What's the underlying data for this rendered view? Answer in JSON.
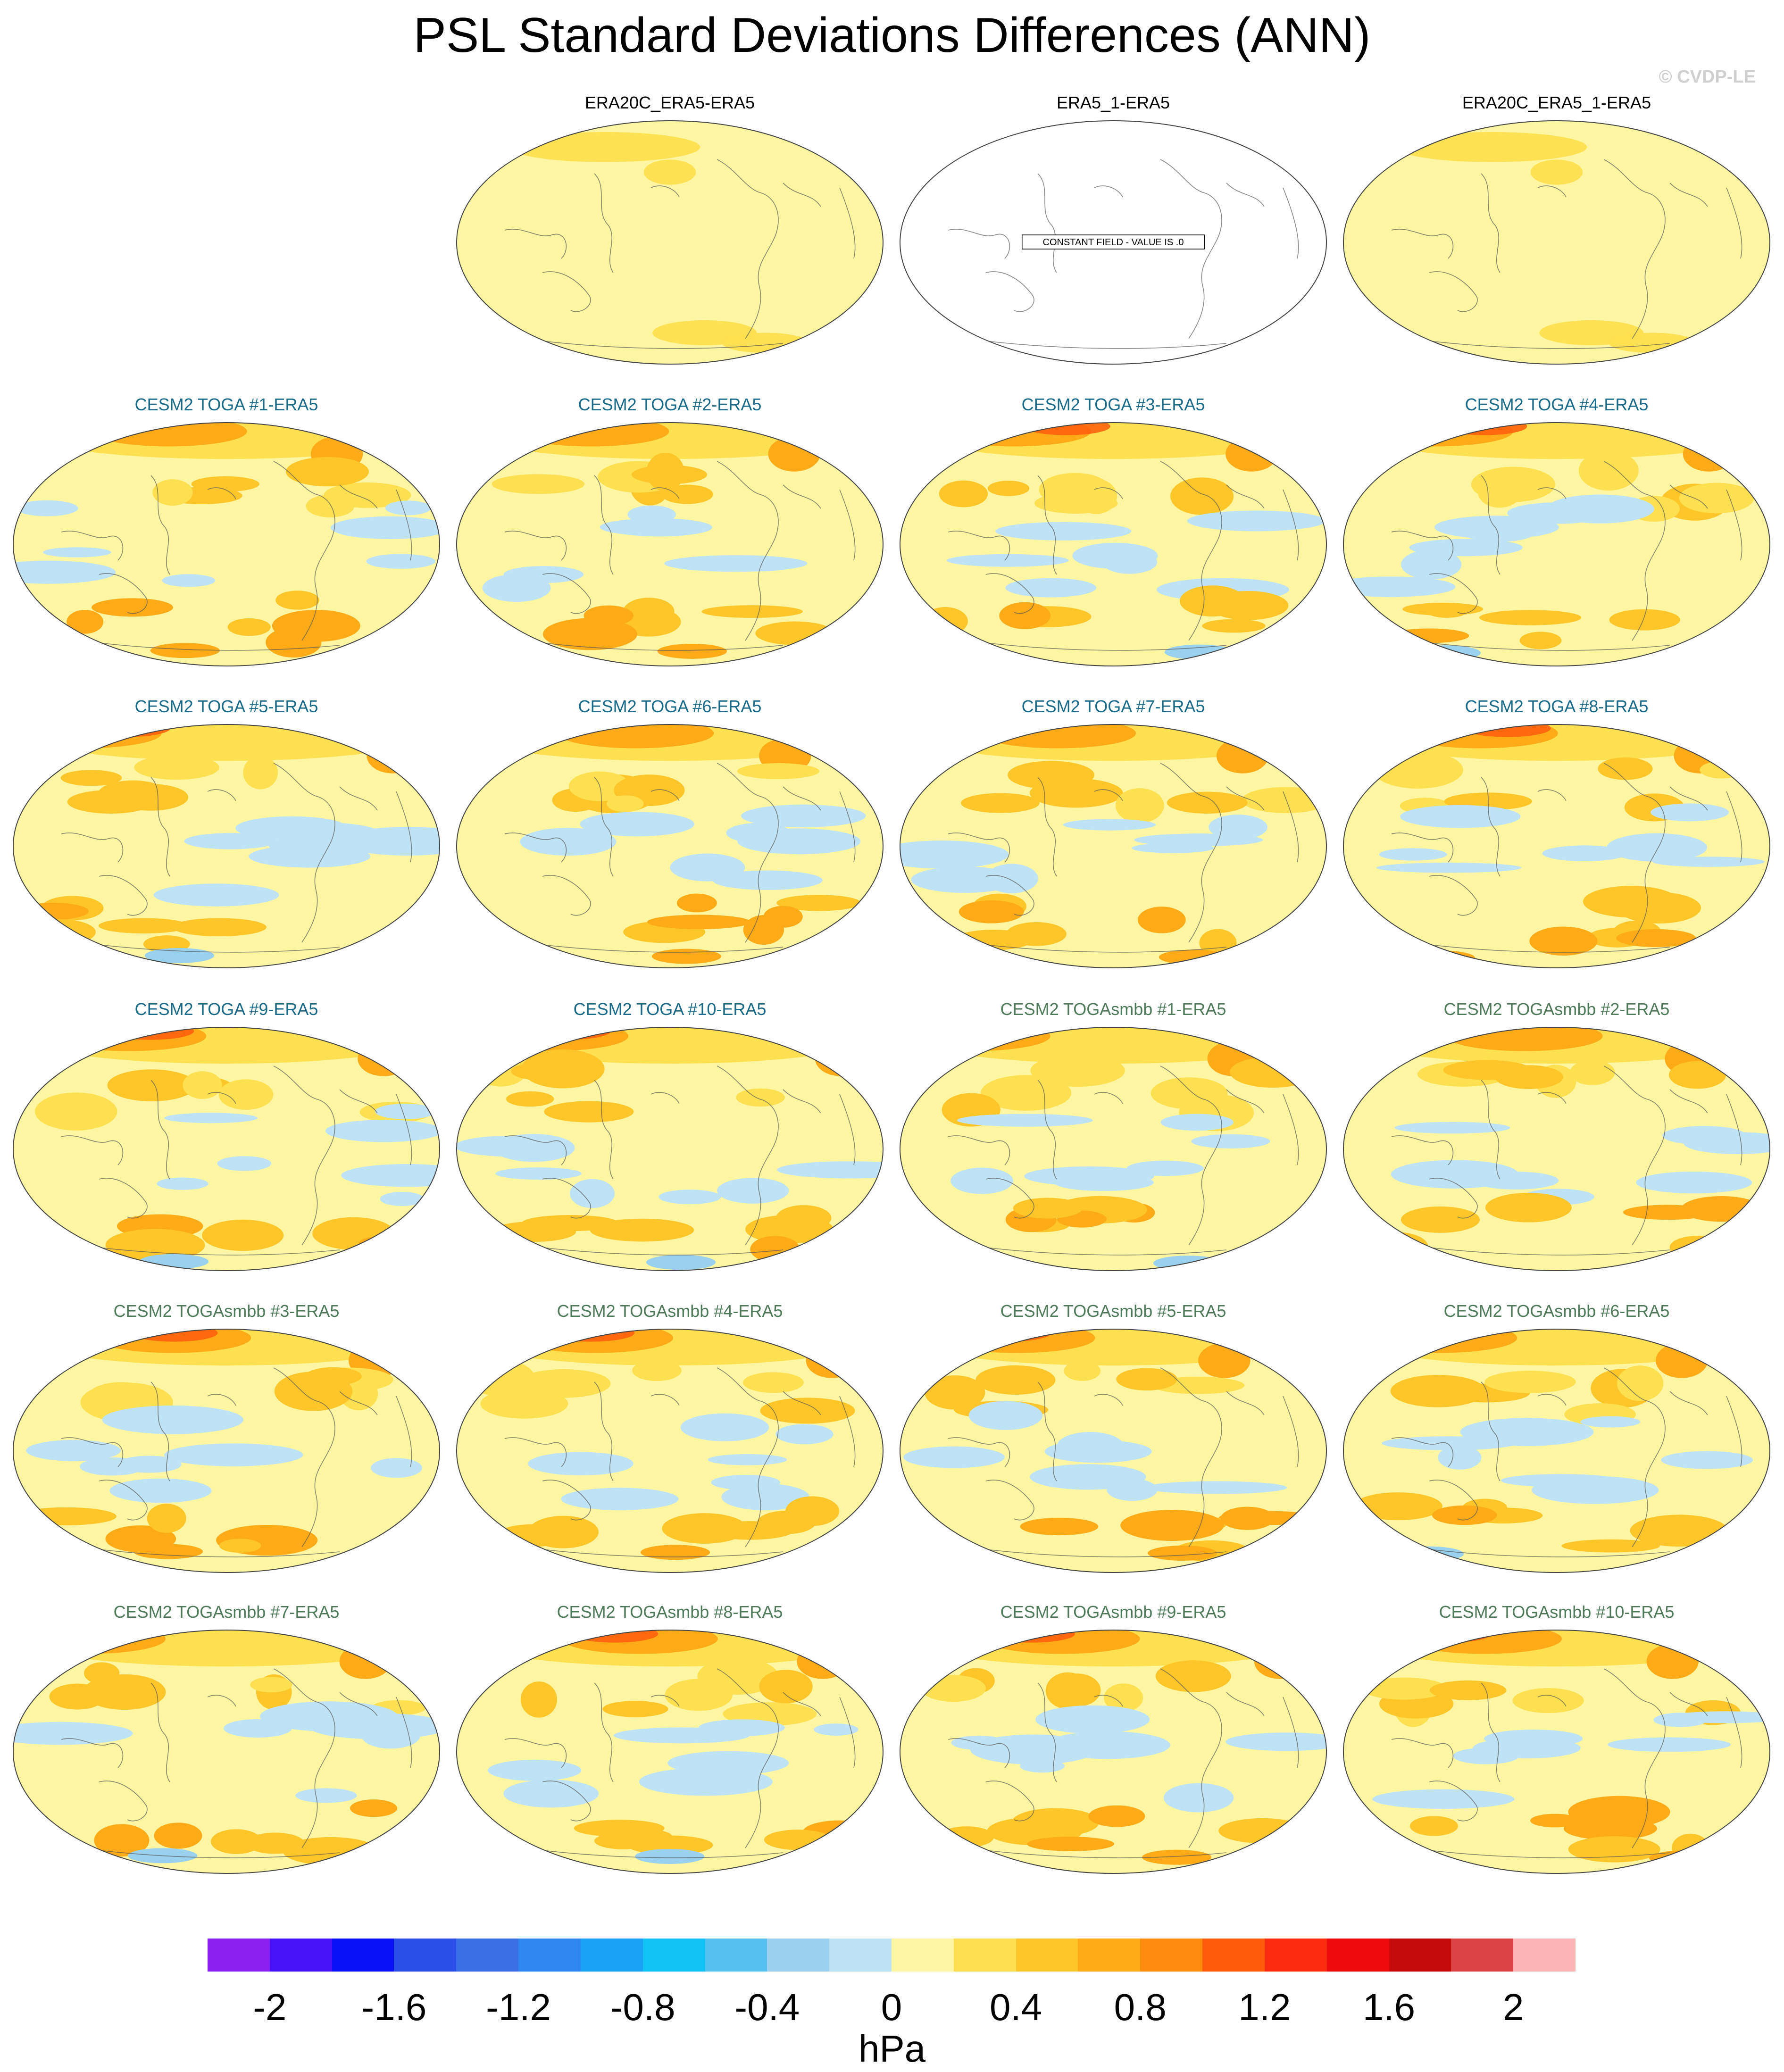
{
  "title": "PSL Standard Deviations Differences (ANN)",
  "watermark": "© CVDP-LE",
  "colorbar": {
    "units": "hPa",
    "colors": [
      "#8c20f0",
      "#4612f6",
      "#0a10f8",
      "#2a4fe6",
      "#3a6fe8",
      "#2f86f0",
      "#1aa2f5",
      "#10c2f6",
      "#55c0ef",
      "#99d1ee",
      "#bfe3f6",
      "#fef6a2",
      "#ffe050",
      "#ffc62a",
      "#ffab18",
      "#ff8c0c",
      "#ff5c0a",
      "#fb2b10",
      "#ec0c0c",
      "#c50a0a",
      "#dc4444",
      "#fbb3b3"
    ],
    "ticks": [
      "-2",
      "-1.6",
      "-1.2",
      "-0.8",
      "-0.4",
      "0",
      "0.4",
      "0.8",
      "1.2",
      "1.6",
      "2"
    ]
  },
  "panels": [
    {
      "title": "ERA20C_ERA5-ERA5",
      "group": "obs",
      "pattern": "obs"
    },
    {
      "title": "ERA5_1-ERA5",
      "group": "obs",
      "pattern": "blank",
      "note": "CONSTANT FIELD - VALUE IS .0"
    },
    {
      "title": "ERA20C_ERA5_1-ERA5",
      "group": "obs",
      "pattern": "obs"
    },
    {
      "title": "CESM2 TOGA #1-ERA5",
      "group": "toga",
      "pattern": "model"
    },
    {
      "title": "CESM2 TOGA #2-ERA5",
      "group": "toga",
      "pattern": "model"
    },
    {
      "title": "CESM2 TOGA #3-ERA5",
      "group": "toga",
      "pattern": "model"
    },
    {
      "title": "CESM2 TOGA #4-ERA5",
      "group": "toga",
      "pattern": "model"
    },
    {
      "title": "CESM2 TOGA #5-ERA5",
      "group": "toga",
      "pattern": "model"
    },
    {
      "title": "CESM2 TOGA #6-ERA5",
      "group": "toga",
      "pattern": "model"
    },
    {
      "title": "CESM2 TOGA #7-ERA5",
      "group": "toga",
      "pattern": "model"
    },
    {
      "title": "CESM2 TOGA #8-ERA5",
      "group": "toga",
      "pattern": "model"
    },
    {
      "title": "CESM2 TOGA #9-ERA5",
      "group": "toga",
      "pattern": "model"
    },
    {
      "title": "CESM2 TOGA #10-ERA5",
      "group": "toga",
      "pattern": "model"
    },
    {
      "title": "CESM2 TOGAsmbb #1-ERA5",
      "group": "smbb",
      "pattern": "model"
    },
    {
      "title": "CESM2 TOGAsmbb #2-ERA5",
      "group": "smbb",
      "pattern": "model"
    },
    {
      "title": "CESM2 TOGAsmbb #3-ERA5",
      "group": "smbb",
      "pattern": "model"
    },
    {
      "title": "CESM2 TOGAsmbb #4-ERA5",
      "group": "smbb",
      "pattern": "model"
    },
    {
      "title": "CESM2 TOGAsmbb #5-ERA5",
      "group": "smbb",
      "pattern": "model"
    },
    {
      "title": "CESM2 TOGAsmbb #6-ERA5",
      "group": "smbb",
      "pattern": "model"
    },
    {
      "title": "CESM2 TOGAsmbb #7-ERA5",
      "group": "smbb",
      "pattern": "model"
    },
    {
      "title": "CESM2 TOGAsmbb #8-ERA5",
      "group": "smbb",
      "pattern": "model"
    },
    {
      "title": "CESM2 TOGAsmbb #9-ERA5",
      "group": "smbb",
      "pattern": "model"
    },
    {
      "title": "CESM2 TOGAsmbb #10-ERA5",
      "group": "smbb",
      "pattern": "model"
    }
  ]
}
